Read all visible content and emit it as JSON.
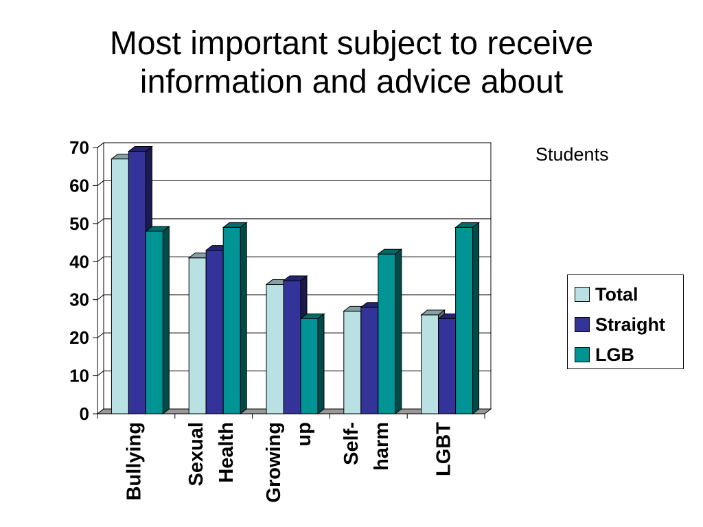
{
  "title": {
    "line1": "Most important subject to receive",
    "line2": "information and advice about"
  },
  "chart_data": {
    "type": "bar",
    "title": "Most important subject to receive information and advice about",
    "subtitle": "Students",
    "categories": [
      [
        "Bullying"
      ],
      [
        "Sexual",
        "Health"
      ],
      [
        "Growing",
        "up"
      ],
      [
        "Self-",
        "harm"
      ],
      [
        "LGBT"
      ]
    ],
    "series": [
      {
        "name": "Total",
        "color": "#b9e0e3",
        "values": [
          67,
          41,
          34,
          27,
          26
        ]
      },
      {
        "name": "Straight",
        "color": "#333399",
        "values": [
          69,
          43,
          35,
          28,
          25
        ]
      },
      {
        "name": "LGB",
        "color": "#009494",
        "values": [
          48,
          49,
          25,
          42,
          49
        ]
      }
    ],
    "ylim": [
      0,
      70
    ],
    "yticks": [
      0,
      10,
      20,
      30,
      40,
      50,
      60,
      70
    ],
    "grid": true,
    "three_d": true,
    "legend_position": "right"
  }
}
